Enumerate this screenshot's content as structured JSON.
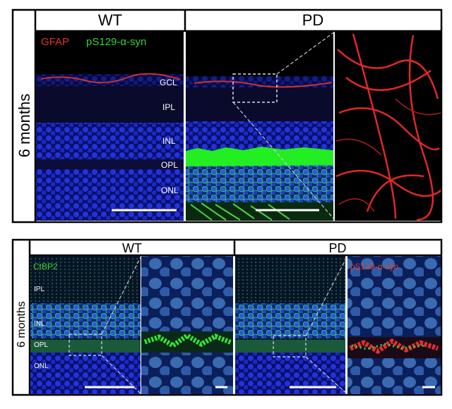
{
  "top_panel": {
    "columns": [
      "WT",
      "PD"
    ],
    "row_label": "6 months",
    "stain_labels": [
      "GFAP",
      "pS129-α-syn"
    ],
    "layers": [
      "GCL",
      "IPL",
      "INL",
      "OPL",
      "ONL"
    ]
  },
  "bottom_panel": {
    "columns": [
      "WT",
      "PD"
    ],
    "row_label": "6 months",
    "stain_labels": [
      "CtBP2",
      "pS129-α-syn"
    ],
    "layers": [
      "IPL",
      "INL",
      "OPL",
      "ONL"
    ]
  }
}
